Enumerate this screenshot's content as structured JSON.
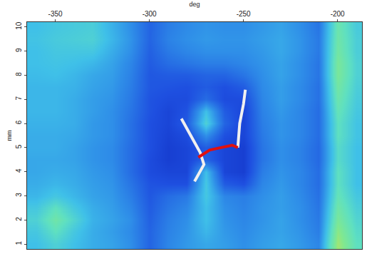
{
  "chart_data": {
    "type": "heatmap",
    "x_label": "deg",
    "y_label": "mm",
    "xlim": [
      -365,
      -187
    ],
    "ylim": [
      0.8,
      10.2
    ],
    "xticks": [
      -350,
      -300,
      -250,
      -200
    ],
    "yticks": [
      1,
      2,
      3,
      4,
      5,
      6,
      7,
      8,
      9,
      10
    ],
    "zlim": [
      0,
      1
    ],
    "x": [
      -360,
      -350,
      -340,
      -330,
      -320,
      -310,
      -300,
      -290,
      -280,
      -270,
      -260,
      -250,
      -240,
      -230,
      -220,
      -210,
      -200,
      -190
    ],
    "y": [
      1,
      1.5,
      2,
      2.5,
      3,
      3.5,
      4,
      4.5,
      5,
      5.5,
      6,
      6.5,
      7,
      7.5,
      8,
      8.5,
      9,
      9.5,
      10
    ],
    "cells": [
      [
        0.4,
        0.45,
        0.4,
        0.36,
        0.34,
        0.3,
        0.2,
        0.28,
        0.32,
        0.35,
        0.33,
        0.3,
        0.33,
        0.35,
        0.32,
        0.28,
        0.65,
        0.5
      ],
      [
        0.42,
        0.5,
        0.42,
        0.36,
        0.33,
        0.29,
        0.2,
        0.27,
        0.31,
        0.38,
        0.32,
        0.29,
        0.32,
        0.34,
        0.31,
        0.26,
        0.62,
        0.48
      ],
      [
        0.45,
        0.55,
        0.46,
        0.37,
        0.34,
        0.3,
        0.19,
        0.26,
        0.3,
        0.4,
        0.31,
        0.28,
        0.31,
        0.34,
        0.3,
        0.25,
        0.58,
        0.46
      ],
      [
        0.42,
        0.5,
        0.42,
        0.36,
        0.33,
        0.28,
        0.18,
        0.24,
        0.28,
        0.4,
        0.3,
        0.27,
        0.31,
        0.33,
        0.3,
        0.24,
        0.55,
        0.44
      ],
      [
        0.38,
        0.42,
        0.38,
        0.34,
        0.32,
        0.26,
        0.17,
        0.22,
        0.25,
        0.42,
        0.28,
        0.26,
        0.3,
        0.33,
        0.29,
        0.23,
        0.52,
        0.42
      ],
      [
        0.36,
        0.38,
        0.36,
        0.33,
        0.31,
        0.24,
        0.16,
        0.15,
        0.15,
        0.42,
        0.18,
        0.15,
        0.28,
        0.32,
        0.28,
        0.22,
        0.5,
        0.4
      ],
      [
        0.35,
        0.36,
        0.35,
        0.32,
        0.3,
        0.22,
        0.14,
        0.12,
        0.12,
        0.4,
        0.12,
        0.1,
        0.26,
        0.31,
        0.28,
        0.22,
        0.5,
        0.4
      ],
      [
        0.35,
        0.35,
        0.34,
        0.31,
        0.29,
        0.22,
        0.14,
        0.1,
        0.12,
        0.2,
        0.12,
        0.1,
        0.24,
        0.3,
        0.27,
        0.21,
        0.48,
        0.4
      ],
      [
        0.36,
        0.36,
        0.34,
        0.31,
        0.29,
        0.22,
        0.15,
        0.1,
        0.12,
        0.18,
        0.12,
        0.1,
        0.24,
        0.3,
        0.27,
        0.21,
        0.48,
        0.4
      ],
      [
        0.36,
        0.36,
        0.35,
        0.32,
        0.3,
        0.23,
        0.15,
        0.11,
        0.14,
        0.3,
        0.15,
        0.12,
        0.25,
        0.31,
        0.28,
        0.22,
        0.5,
        0.41
      ],
      [
        0.37,
        0.37,
        0.36,
        0.32,
        0.3,
        0.23,
        0.15,
        0.12,
        0.18,
        0.45,
        0.2,
        0.12,
        0.26,
        0.31,
        0.28,
        0.22,
        0.5,
        0.41
      ],
      [
        0.38,
        0.38,
        0.36,
        0.33,
        0.3,
        0.24,
        0.16,
        0.12,
        0.16,
        0.4,
        0.18,
        0.12,
        0.27,
        0.32,
        0.28,
        0.22,
        0.52,
        0.42
      ],
      [
        0.38,
        0.38,
        0.36,
        0.33,
        0.31,
        0.25,
        0.16,
        0.14,
        0.14,
        0.22,
        0.14,
        0.14,
        0.28,
        0.33,
        0.29,
        0.23,
        0.54,
        0.43
      ],
      [
        0.38,
        0.38,
        0.37,
        0.34,
        0.32,
        0.26,
        0.17,
        0.16,
        0.15,
        0.18,
        0.15,
        0.18,
        0.29,
        0.33,
        0.29,
        0.23,
        0.56,
        0.44
      ],
      [
        0.39,
        0.4,
        0.38,
        0.35,
        0.33,
        0.27,
        0.17,
        0.18,
        0.18,
        0.2,
        0.2,
        0.24,
        0.3,
        0.34,
        0.3,
        0.24,
        0.58,
        0.45
      ],
      [
        0.4,
        0.41,
        0.4,
        0.38,
        0.34,
        0.28,
        0.18,
        0.22,
        0.24,
        0.26,
        0.26,
        0.28,
        0.31,
        0.34,
        0.3,
        0.24,
        0.58,
        0.45
      ],
      [
        0.4,
        0.42,
        0.42,
        0.42,
        0.36,
        0.3,
        0.19,
        0.25,
        0.28,
        0.3,
        0.3,
        0.3,
        0.32,
        0.35,
        0.31,
        0.25,
        0.56,
        0.44
      ],
      [
        0.41,
        0.43,
        0.44,
        0.45,
        0.38,
        0.31,
        0.2,
        0.27,
        0.3,
        0.32,
        0.31,
        0.31,
        0.33,
        0.35,
        0.31,
        0.25,
        0.55,
        0.44
      ],
      [
        0.4,
        0.42,
        0.43,
        0.44,
        0.37,
        0.3,
        0.2,
        0.26,
        0.29,
        0.31,
        0.3,
        0.3,
        0.32,
        0.34,
        0.3,
        0.24,
        0.54,
        0.43
      ]
    ],
    "series": [
      {
        "type": "line",
        "color": "#f0f0f0",
        "x": [
          -283,
          -278,
          -273,
          -271,
          -276
        ],
        "y": [
          6.2,
          5.5,
          4.8,
          4.3,
          3.6
        ]
      },
      {
        "type": "line",
        "color": "#f0f0f0",
        "x": [
          -253,
          -252,
          -250,
          -249
        ],
        "y": [
          5.0,
          6.0,
          6.8,
          7.4
        ]
      },
      {
        "type": "line",
        "color": "#e01010",
        "x": [
          -274,
          -268,
          -262,
          -256,
          -253
        ],
        "y": [
          4.6,
          4.9,
          5.0,
          5.1,
          5.0
        ]
      }
    ]
  }
}
